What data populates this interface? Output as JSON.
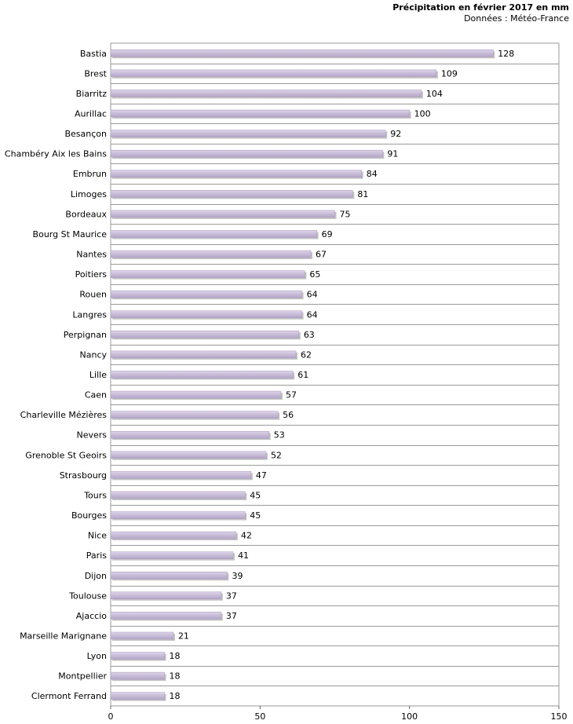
{
  "chart_data": {
    "type": "bar",
    "orientation": "horizontal",
    "title": "Précipitation en février 2017 en mm",
    "subtitle": "Données : Météo-France",
    "xlabel": "",
    "ylabel": "",
    "xlim": [
      0,
      150
    ],
    "xticks": [
      "0",
      "50",
      "100",
      "150"
    ],
    "grid": true,
    "bar_color": "#c8bcd8",
    "categories": [
      "Bastia",
      "Brest",
      "Biarritz",
      "Aurillac",
      "Besançon",
      "Chambéry Aix les Bains",
      "Embrun",
      "Limoges",
      "Bordeaux",
      "Bourg St Maurice",
      "Nantes",
      "Poitiers",
      "Rouen",
      "Langres",
      "Perpignan",
      "Nancy",
      "Lille",
      "Caen",
      "Charleville Mézières",
      "Nevers",
      "Grenoble St Geoirs",
      "Strasbourg",
      "Tours",
      "Bourges",
      "Nice",
      "Paris",
      "Dijon",
      "Toulouse",
      "Ajaccio",
      "Marseille Marignane",
      "Lyon",
      "Montpellier",
      "Clermont Ferrand"
    ],
    "values": [
      128,
      109,
      104,
      100,
      92,
      91,
      84,
      81,
      75,
      69,
      67,
      65,
      64,
      64,
      63,
      62,
      61,
      57,
      56,
      53,
      52,
      47,
      45,
      45,
      42,
      41,
      39,
      37,
      37,
      21,
      18,
      18,
      18
    ],
    "value_labels": [
      "128",
      "109",
      "104",
      "100",
      "92",
      "91",
      "84",
      "81",
      "75",
      "69",
      "67",
      "65",
      "64",
      "64",
      "63",
      "62",
      "61",
      "57",
      "56",
      "53",
      "52",
      "47",
      "45",
      "45",
      "42",
      "41",
      "39",
      "37",
      "37",
      "21",
      "18",
      "18",
      "18"
    ]
  }
}
